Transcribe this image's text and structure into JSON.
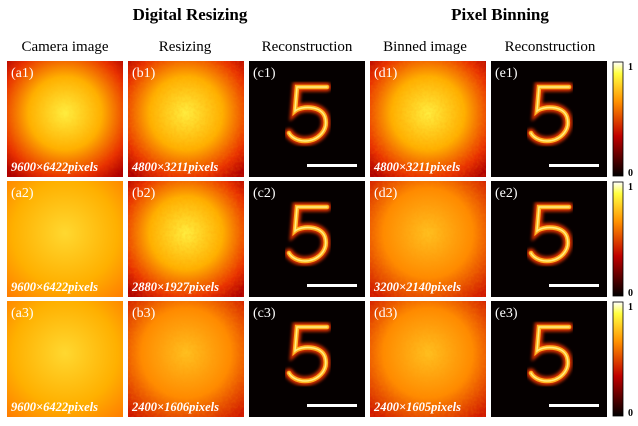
{
  "groups": [
    {
      "title": "Digital Resizing"
    },
    {
      "title": "Pixel Binning"
    }
  ],
  "columns": [
    "Camera image",
    "Resizing",
    "Reconstruction",
    "Binned image",
    "Reconstruction"
  ],
  "rows": [
    {
      "panels": [
        {
          "label": "(a1)",
          "pixels": "9600×6422pixels"
        },
        {
          "label": "(b1)",
          "pixels": "4800×3211pixels"
        },
        {
          "label": "(c1)"
        },
        {
          "label": "(d1)",
          "pixels": "4800×3211pixels"
        },
        {
          "label": "(e1)"
        }
      ],
      "colorbar": [
        "1",
        "0"
      ]
    },
    {
      "panels": [
        {
          "label": "(a2)",
          "pixels": "9600×6422pixels"
        },
        {
          "label": "(b2)",
          "pixels": "2880×1927pixels"
        },
        {
          "label": "(c2)"
        },
        {
          "label": "(d2)",
          "pixels": "3200×2140pixels"
        },
        {
          "label": "(e2)"
        }
      ],
      "colorbar": [
        "1",
        "0"
      ]
    },
    {
      "panels": [
        {
          "label": "(a3)",
          "pixels": "9600×6422pixels"
        },
        {
          "label": "(b3)",
          "pixels": "2400×1606pixels"
        },
        {
          "label": "(c3)"
        },
        {
          "label": "(d3)",
          "pixels": "2400×1605pixels"
        },
        {
          "label": "(e3)"
        }
      ],
      "colorbar": [
        "1",
        "0"
      ]
    }
  ]
}
